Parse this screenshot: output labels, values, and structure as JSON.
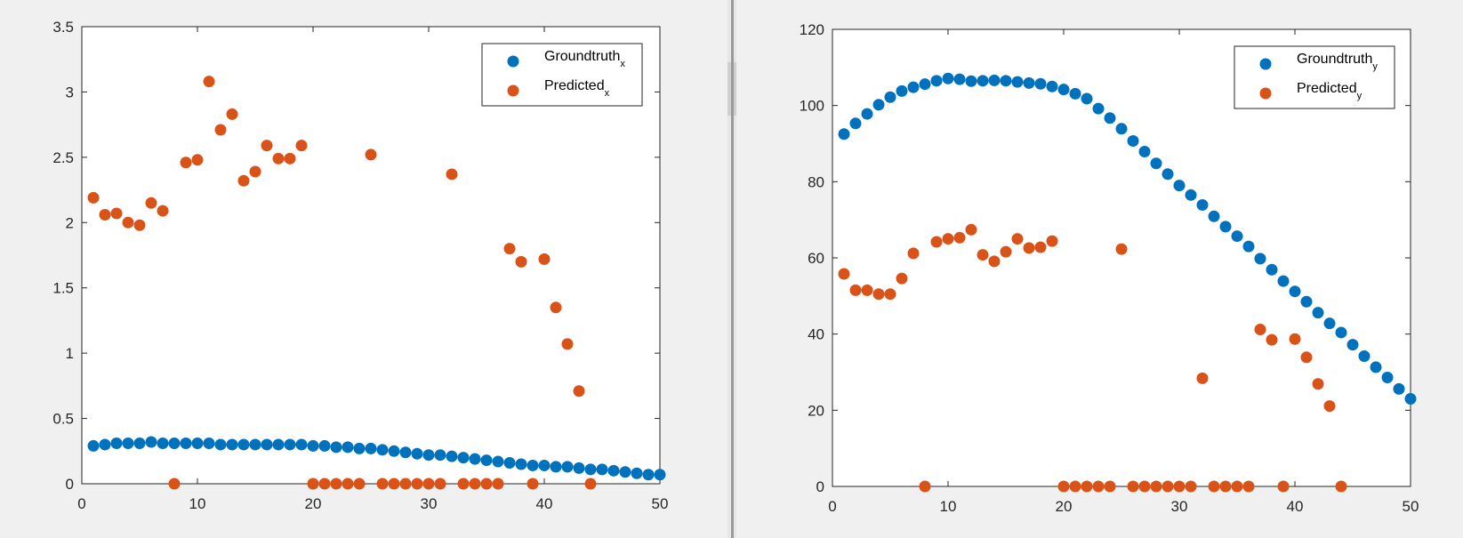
{
  "colors": {
    "groundtruth": "#0072bd",
    "predicted": "#d95319"
  },
  "chart_data": [
    {
      "type": "scatter",
      "xlim": [
        0,
        50
      ],
      "ylim": [
        0,
        3.5
      ],
      "x_ticks": [
        0,
        10,
        20,
        30,
        40,
        50
      ],
      "y_ticks": [
        0,
        0.5,
        1,
        1.5,
        2,
        2.5,
        3,
        3.5
      ],
      "x_tick_labels": [
        "0",
        "10",
        "20",
        "30",
        "40",
        "50"
      ],
      "y_tick_labels": [
        "0",
        "0.5",
        "1",
        "1.5",
        "2",
        "2.5",
        "3",
        "3.5"
      ],
      "legend_position": "top-right",
      "series": [
        {
          "name": "Groundtruth",
          "subscript": "x",
          "x": [
            1,
            2,
            3,
            4,
            5,
            6,
            7,
            8,
            9,
            10,
            11,
            12,
            13,
            14,
            15,
            16,
            17,
            18,
            19,
            20,
            21,
            22,
            23,
            24,
            25,
            26,
            27,
            28,
            29,
            30,
            31,
            32,
            33,
            34,
            35,
            36,
            37,
            38,
            39,
            40,
            41,
            42,
            43,
            44,
            45,
            46,
            47,
            48,
            49,
            50
          ],
          "y": [
            0.29,
            0.3,
            0.31,
            0.31,
            0.31,
            0.32,
            0.31,
            0.31,
            0.31,
            0.31,
            0.31,
            0.3,
            0.3,
            0.3,
            0.3,
            0.3,
            0.3,
            0.3,
            0.3,
            0.29,
            0.29,
            0.28,
            0.28,
            0.27,
            0.27,
            0.26,
            0.25,
            0.24,
            0.23,
            0.22,
            0.22,
            0.21,
            0.2,
            0.19,
            0.18,
            0.17,
            0.16,
            0.15,
            0.14,
            0.14,
            0.13,
            0.13,
            0.12,
            0.11,
            0.11,
            0.1,
            0.09,
            0.08,
            0.07,
            0.07
          ]
        },
        {
          "name": "Predicted",
          "subscript": "x",
          "x": [
            1,
            2,
            3,
            4,
            5,
            6,
            7,
            8,
            9,
            10,
            11,
            12,
            13,
            14,
            15,
            16,
            17,
            18,
            19,
            20,
            21,
            22,
            23,
            24,
            25,
            26,
            27,
            28,
            29,
            30,
            31,
            32,
            33,
            34,
            35,
            36,
            37,
            38,
            39,
            40,
            41,
            42,
            43,
            44
          ],
          "y": [
            2.19,
            2.06,
            2.07,
            2.0,
            1.98,
            2.15,
            2.09,
            0,
            2.46,
            2.48,
            3.08,
            2.71,
            2.83,
            2.32,
            2.39,
            2.59,
            2.49,
            2.49,
            2.59,
            0,
            0,
            0,
            0,
            0,
            2.52,
            0,
            0,
            0,
            0,
            0,
            0,
            2.37,
            0,
            0,
            0,
            0,
            1.8,
            1.7,
            0,
            1.72,
            1.35,
            1.07,
            0.71,
            0
          ]
        }
      ]
    },
    {
      "type": "scatter",
      "xlim": [
        0,
        50
      ],
      "ylim": [
        0,
        120
      ],
      "x_ticks": [
        0,
        10,
        20,
        30,
        40,
        50
      ],
      "y_ticks": [
        0,
        20,
        40,
        60,
        80,
        100,
        120
      ],
      "x_tick_labels": [
        "0",
        "10",
        "20",
        "30",
        "40",
        "50"
      ],
      "y_tick_labels": [
        "0",
        "20",
        "40",
        "60",
        "80",
        "100",
        "120"
      ],
      "legend_position": "top-right",
      "series": [
        {
          "name": "Groundtruth",
          "subscript": "y",
          "x": [
            1,
            2,
            3,
            4,
            5,
            6,
            7,
            8,
            9,
            10,
            11,
            12,
            13,
            14,
            15,
            16,
            17,
            18,
            19,
            20,
            21,
            22,
            23,
            24,
            25,
            26,
            27,
            28,
            29,
            30,
            31,
            32,
            33,
            34,
            35,
            36,
            37,
            38,
            39,
            40,
            41,
            42,
            43,
            44,
            45,
            46,
            47,
            48,
            49,
            50
          ],
          "y": [
            92.5,
            95.3,
            97.8,
            100.2,
            102.2,
            103.8,
            104.8,
            105.6,
            106.5,
            107.1,
            106.9,
            106.4,
            106.5,
            106.6,
            106.5,
            106.2,
            105.9,
            105.7,
            105.0,
            104.2,
            103.1,
            101.8,
            99.2,
            96.7,
            93.9,
            90.7,
            87.9,
            84.8,
            82.0,
            79.0,
            76.5,
            73.9,
            70.9,
            68.2,
            65.7,
            63.0,
            59.8,
            56.9,
            53.9,
            51.2,
            48.5,
            45.6,
            42.8,
            40.4,
            37.2,
            34.2,
            31.3,
            28.6,
            25.6,
            23.0
          ]
        },
        {
          "name": "Predicted",
          "subscript": "y",
          "x": [
            1,
            2,
            3,
            4,
            5,
            6,
            7,
            8,
            9,
            10,
            11,
            12,
            13,
            14,
            15,
            16,
            17,
            18,
            19,
            20,
            21,
            22,
            23,
            24,
            25,
            26,
            27,
            28,
            29,
            30,
            31,
            32,
            33,
            34,
            35,
            36,
            37,
            38,
            39,
            40,
            41,
            42,
            43,
            44
          ],
          "y": [
            55.8,
            51.5,
            51.5,
            50.5,
            50.5,
            54.6,
            61.2,
            0,
            64.2,
            65.0,
            65.3,
            67.4,
            60.8,
            59.1,
            61.6,
            65.0,
            62.6,
            62.8,
            64.4,
            0,
            0,
            0,
            0,
            0,
            62.3,
            0,
            0,
            0,
            0,
            0,
            0,
            28.4,
            0,
            0,
            0,
            0,
            41.2,
            38.5,
            0,
            38.7,
            33.9,
            26.9,
            21.1,
            0
          ]
        }
      ]
    }
  ]
}
